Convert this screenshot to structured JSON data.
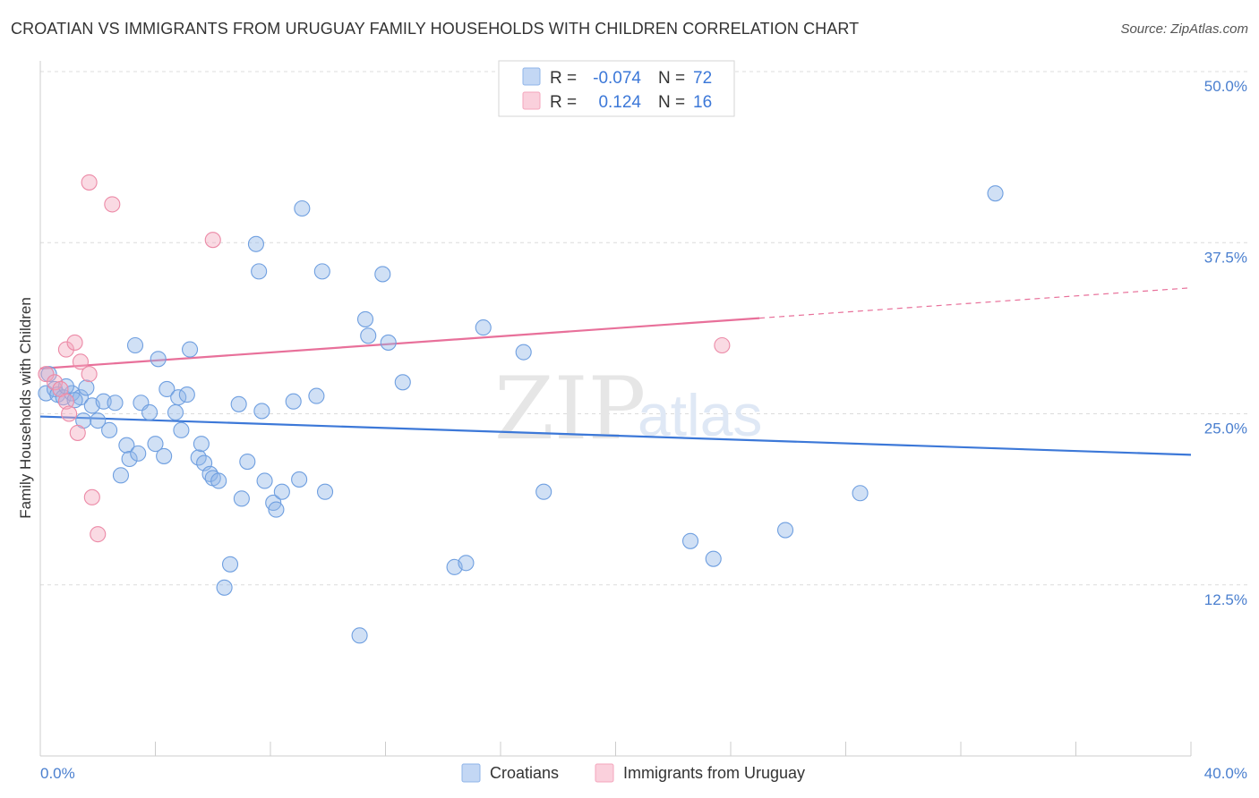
{
  "title": "CROATIAN VS IMMIGRANTS FROM URUGUAY FAMILY HOUSEHOLDS WITH CHILDREN CORRELATION CHART",
  "source": "Source: ZipAtlas.com",
  "watermark": {
    "zip": "ZIP",
    "atlas": "atlas"
  },
  "legend": {
    "rows": [
      {
        "r_label": "R =",
        "r_value": "-0.074",
        "n_label": "N =",
        "n_value": "72",
        "color": "#8fb4e8"
      },
      {
        "r_label": "R =",
        "r_value": "0.124",
        "n_label": "N =",
        "n_value": "16",
        "color": "#f4a6bd"
      }
    ]
  },
  "chart_data": {
    "type": "scatter",
    "title": "CROATIAN VS IMMIGRANTS FROM URUGUAY FAMILY HOUSEHOLDS WITH CHILDREN CORRELATION CHART",
    "xlabel": "",
    "ylabel": "Family Households with Children",
    "xlim": [
      0,
      40
    ],
    "ylim": [
      0,
      50
    ],
    "x_tick_labels": [
      {
        "value": 0,
        "label": "0.0%"
      },
      {
        "value": 40,
        "label": "40.0%"
      }
    ],
    "y_tick_labels": [
      {
        "value": 12.5,
        "label": "12.5%"
      },
      {
        "value": 25.0,
        "label": "25.0%"
      },
      {
        "value": 37.5,
        "label": "37.5%"
      },
      {
        "value": 50.0,
        "label": "50.0%"
      }
    ],
    "series": [
      {
        "name": "Croatians",
        "color": "#8fb4e8",
        "stroke": "#6f9fe0",
        "trend": {
          "x0": 0,
          "y0": 24.8,
          "x1": 40,
          "y1": 22.0,
          "color": "#3c78d8",
          "dashed_from": null
        },
        "points": [
          [
            0.2,
            26.5
          ],
          [
            0.5,
            26.8
          ],
          [
            0.6,
            26.4
          ],
          [
            0.8,
            26.2
          ],
          [
            1.1,
            26.5
          ],
          [
            1.4,
            26.2
          ],
          [
            1.6,
            26.9
          ],
          [
            1.8,
            25.6
          ],
          [
            1.5,
            24.5
          ],
          [
            2.0,
            24.5
          ],
          [
            2.4,
            23.8
          ],
          [
            2.2,
            25.9
          ],
          [
            2.6,
            25.8
          ],
          [
            3.0,
            22.7
          ],
          [
            3.1,
            21.7
          ],
          [
            3.4,
            22.1
          ],
          [
            2.8,
            20.5
          ],
          [
            3.3,
            30.0
          ],
          [
            3.5,
            25.8
          ],
          [
            3.8,
            25.1
          ],
          [
            4.0,
            22.8
          ],
          [
            4.1,
            29.0
          ],
          [
            4.3,
            21.9
          ],
          [
            4.4,
            26.8
          ],
          [
            4.7,
            25.1
          ],
          [
            4.8,
            26.2
          ],
          [
            4.9,
            23.8
          ],
          [
            5.1,
            26.4
          ],
          [
            5.2,
            29.7
          ],
          [
            5.5,
            21.8
          ],
          [
            5.6,
            22.8
          ],
          [
            5.7,
            21.4
          ],
          [
            5.9,
            20.6
          ],
          [
            6.0,
            20.3
          ],
          [
            6.2,
            20.1
          ],
          [
            6.4,
            12.3
          ],
          [
            6.6,
            14.0
          ],
          [
            6.9,
            25.7
          ],
          [
            7.0,
            18.8
          ],
          [
            7.2,
            21.5
          ],
          [
            7.5,
            37.4
          ],
          [
            7.6,
            35.4
          ],
          [
            7.7,
            25.2
          ],
          [
            7.8,
            20.1
          ],
          [
            8.1,
            18.5
          ],
          [
            8.2,
            18.0
          ],
          [
            8.4,
            19.3
          ],
          [
            8.8,
            25.9
          ],
          [
            9.0,
            20.2
          ],
          [
            9.1,
            40.0
          ],
          [
            9.6,
            26.3
          ],
          [
            9.8,
            35.4
          ],
          [
            9.9,
            19.3
          ],
          [
            11.1,
            8.8
          ],
          [
            11.3,
            31.9
          ],
          [
            11.4,
            30.7
          ],
          [
            11.9,
            35.2
          ],
          [
            12.1,
            30.2
          ],
          [
            12.6,
            27.3
          ],
          [
            14.4,
            13.8
          ],
          [
            14.8,
            14.1
          ],
          [
            15.4,
            31.3
          ],
          [
            16.8,
            29.5
          ],
          [
            17.5,
            19.3
          ],
          [
            22.6,
            15.7
          ],
          [
            23.4,
            14.4
          ],
          [
            25.9,
            16.5
          ],
          [
            28.5,
            19.2
          ],
          [
            33.2,
            41.1
          ],
          [
            0.3,
            27.9
          ],
          [
            0.9,
            27.0
          ],
          [
            1.2,
            26.0
          ]
        ]
      },
      {
        "name": "Immigrants from Uruguay",
        "color": "#f4a6bd",
        "stroke": "#ec8aa7",
        "trend": {
          "x0": 0,
          "y0": 28.3,
          "x1": 40,
          "y1": 34.2,
          "color": "#e8709a",
          "dashed_from": 25.0
        },
        "points": [
          [
            0.2,
            27.9
          ],
          [
            0.5,
            27.3
          ],
          [
            0.7,
            26.8
          ],
          [
            0.9,
            25.9
          ],
          [
            1.0,
            25.0
          ],
          [
            0.9,
            29.7
          ],
          [
            1.2,
            30.2
          ],
          [
            1.4,
            28.8
          ],
          [
            1.3,
            23.6
          ],
          [
            1.7,
            27.9
          ],
          [
            1.8,
            18.9
          ],
          [
            2.0,
            16.2
          ],
          [
            1.7,
            41.9
          ],
          [
            2.5,
            40.3
          ],
          [
            6.0,
            37.7
          ],
          [
            23.7,
            30.0
          ]
        ]
      }
    ],
    "legend_position": "top-center",
    "grid": true
  }
}
